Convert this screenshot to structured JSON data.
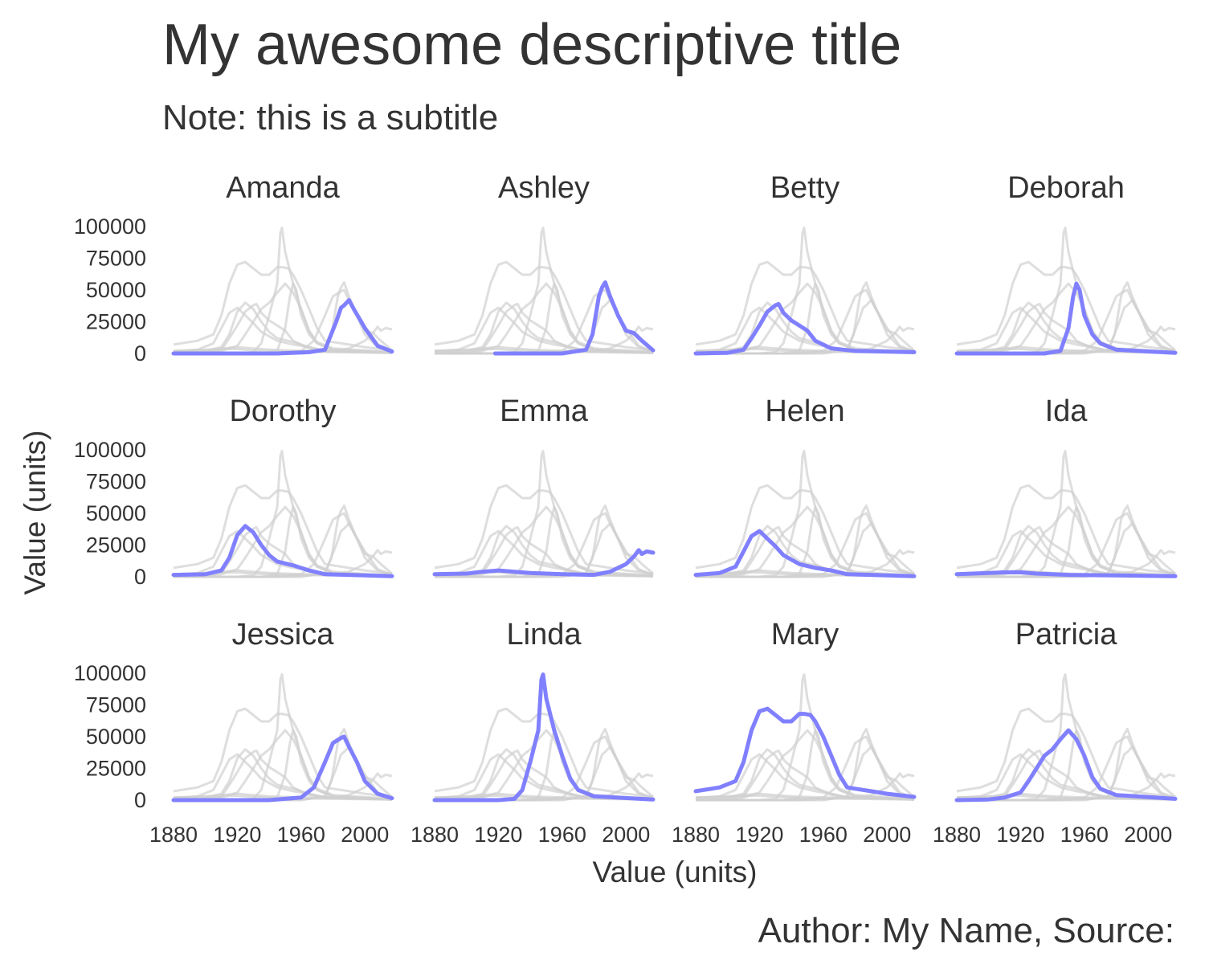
{
  "title": "My awesome descriptive title",
  "subtitle": "Note: this is a subtitle",
  "caption": "Author: My Name, Source:",
  "chart_data": {
    "type": "line",
    "layout": "small-multiples (facets), 3 rows x 4 columns; each facet highlights one name in blue over all names in grey",
    "xlabel": "Value (units)",
    "ylabel": "Value (units)",
    "xlim": [
      1880,
      2017
    ],
    "ylim": [
      0,
      100000
    ],
    "x_ticks": [
      "1880",
      "1920",
      "1960",
      "2000"
    ],
    "y_ticks": [
      "0",
      "25000",
      "50000",
      "75000",
      "100000"
    ],
    "highlight_color": "#8080ff",
    "background_color": "#d0d0d0",
    "grid": false,
    "series": [
      {
        "name": "Amanda",
        "points": [
          [
            1880,
            0
          ],
          [
            1945,
            0
          ],
          [
            1965,
            1000
          ],
          [
            1975,
            3000
          ],
          [
            1982,
            25000
          ],
          [
            1985,
            36000
          ],
          [
            1987,
            38000
          ],
          [
            1990,
            42000
          ],
          [
            1993,
            35000
          ],
          [
            2000,
            20000
          ],
          [
            2008,
            6000
          ],
          [
            2017,
            1500
          ]
        ]
      },
      {
        "name": "Ashley",
        "points": [
          [
            1918,
            0
          ],
          [
            1960,
            0
          ],
          [
            1975,
            3000
          ],
          [
            1979,
            15000
          ],
          [
            1983,
            45000
          ],
          [
            1985,
            52000
          ],
          [
            1987,
            56000
          ],
          [
            1990,
            45000
          ],
          [
            1995,
            30000
          ],
          [
            2000,
            18000
          ],
          [
            2005,
            16000
          ],
          [
            2010,
            10000
          ],
          [
            2017,
            2500
          ]
        ]
      },
      {
        "name": "Betty",
        "points": [
          [
            1880,
            0
          ],
          [
            1900,
            500
          ],
          [
            1910,
            3000
          ],
          [
            1915,
            12000
          ],
          [
            1920,
            22000
          ],
          [
            1925,
            33000
          ],
          [
            1930,
            38000
          ],
          [
            1932,
            39000
          ],
          [
            1935,
            32000
          ],
          [
            1940,
            26000
          ],
          [
            1945,
            22000
          ],
          [
            1950,
            18000
          ],
          [
            1955,
            10000
          ],
          [
            1965,
            4000
          ],
          [
            1980,
            2000
          ],
          [
            2017,
            1000
          ]
        ]
      },
      {
        "name": "Deborah",
        "points": [
          [
            1880,
            0
          ],
          [
            1935,
            0
          ],
          [
            1945,
            2000
          ],
          [
            1950,
            20000
          ],
          [
            1953,
            45000
          ],
          [
            1955,
            55000
          ],
          [
            1957,
            50000
          ],
          [
            1960,
            30000
          ],
          [
            1965,
            15000
          ],
          [
            1970,
            8000
          ],
          [
            1980,
            3000
          ],
          [
            2017,
            500
          ]
        ]
      },
      {
        "name": "Dorothy",
        "points": [
          [
            1880,
            1500
          ],
          [
            1900,
            2000
          ],
          [
            1910,
            5000
          ],
          [
            1915,
            15000
          ],
          [
            1920,
            33000
          ],
          [
            1925,
            40000
          ],
          [
            1930,
            35000
          ],
          [
            1935,
            25000
          ],
          [
            1940,
            17000
          ],
          [
            1945,
            12000
          ],
          [
            1955,
            9000
          ],
          [
            1965,
            5000
          ],
          [
            1975,
            2000
          ],
          [
            2017,
            500
          ]
        ]
      },
      {
        "name": "Emma",
        "points": [
          [
            1880,
            2000
          ],
          [
            1900,
            2500
          ],
          [
            1910,
            4000
          ],
          [
            1920,
            5000
          ],
          [
            1930,
            4000
          ],
          [
            1940,
            3000
          ],
          [
            1960,
            2000
          ],
          [
            1980,
            1500
          ],
          [
            1990,
            4000
          ],
          [
            2000,
            10000
          ],
          [
            2005,
            16000
          ],
          [
            2008,
            21000
          ],
          [
            2010,
            18000
          ],
          [
            2013,
            20000
          ],
          [
            2017,
            19000
          ]
        ]
      },
      {
        "name": "Helen",
        "points": [
          [
            1880,
            1500
          ],
          [
            1895,
            3000
          ],
          [
            1905,
            8000
          ],
          [
            1910,
            20000
          ],
          [
            1915,
            32000
          ],
          [
            1920,
            36000
          ],
          [
            1925,
            30000
          ],
          [
            1930,
            24000
          ],
          [
            1935,
            17000
          ],
          [
            1945,
            10000
          ],
          [
            1955,
            7000
          ],
          [
            1965,
            5000
          ],
          [
            1975,
            2000
          ],
          [
            2017,
            500
          ]
        ]
      },
      {
        "name": "Ida",
        "points": [
          [
            1880,
            2000
          ],
          [
            1900,
            3000
          ],
          [
            1910,
            3500
          ],
          [
            1920,
            3500
          ],
          [
            1930,
            2500
          ],
          [
            1950,
            1500
          ],
          [
            2017,
            500
          ]
        ]
      },
      {
        "name": "Jessica",
        "points": [
          [
            1880,
            0
          ],
          [
            1940,
            0
          ],
          [
            1960,
            2000
          ],
          [
            1968,
            10000
          ],
          [
            1975,
            30000
          ],
          [
            1980,
            45000
          ],
          [
            1985,
            49000
          ],
          [
            1987,
            50000
          ],
          [
            1990,
            42000
          ],
          [
            1995,
            30000
          ],
          [
            2000,
            15000
          ],
          [
            2008,
            5000
          ],
          [
            2017,
            1500
          ]
        ]
      },
      {
        "name": "Linda",
        "points": [
          [
            1880,
            0
          ],
          [
            1920,
            0
          ],
          [
            1930,
            1000
          ],
          [
            1935,
            8000
          ],
          [
            1940,
            30000
          ],
          [
            1945,
            55000
          ],
          [
            1947,
            95000
          ],
          [
            1948,
            99000
          ],
          [
            1950,
            80000
          ],
          [
            1955,
            55000
          ],
          [
            1960,
            35000
          ],
          [
            1965,
            17000
          ],
          [
            1970,
            8000
          ],
          [
            1980,
            3000
          ],
          [
            2017,
            500
          ]
        ]
      },
      {
        "name": "Mary",
        "points": [
          [
            1880,
            7000
          ],
          [
            1895,
            10000
          ],
          [
            1905,
            15000
          ],
          [
            1910,
            30000
          ],
          [
            1915,
            55000
          ],
          [
            1920,
            70000
          ],
          [
            1925,
            72000
          ],
          [
            1930,
            67000
          ],
          [
            1935,
            62000
          ],
          [
            1940,
            62000
          ],
          [
            1945,
            68000
          ],
          [
            1948,
            68000
          ],
          [
            1952,
            67000
          ],
          [
            1955,
            62000
          ],
          [
            1960,
            50000
          ],
          [
            1965,
            35000
          ],
          [
            1970,
            20000
          ],
          [
            1975,
            10000
          ],
          [
            1980,
            9000
          ],
          [
            1990,
            7000
          ],
          [
            2000,
            5000
          ],
          [
            2017,
            2500
          ]
        ]
      },
      {
        "name": "Patricia",
        "points": [
          [
            1880,
            0
          ],
          [
            1900,
            500
          ],
          [
            1910,
            2000
          ],
          [
            1920,
            6000
          ],
          [
            1925,
            15000
          ],
          [
            1930,
            25000
          ],
          [
            1935,
            35000
          ],
          [
            1940,
            40000
          ],
          [
            1945,
            48000
          ],
          [
            1950,
            55000
          ],
          [
            1955,
            48000
          ],
          [
            1960,
            35000
          ],
          [
            1965,
            18000
          ],
          [
            1970,
            9000
          ],
          [
            1980,
            4000
          ],
          [
            2017,
            1000
          ]
        ]
      }
    ]
  }
}
